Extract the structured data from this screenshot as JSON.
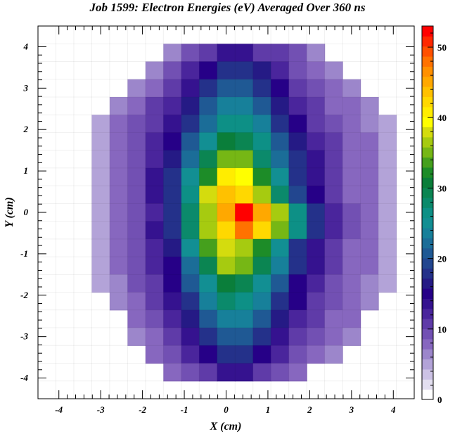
{
  "chart_data": {
    "type": "heatmap",
    "title": "Job 1599: Electron Energies (eV) Averaged Over 360 ns",
    "xlabel": "X (cm)",
    "ylabel": "Y (cm)",
    "xlim": [
      -4.5,
      4.5
    ],
    "ylim": [
      -4.5,
      4.5
    ],
    "x_ticks": [
      -4,
      -3,
      -2,
      -1,
      0,
      1,
      2,
      3,
      4
    ],
    "y_ticks": [
      -4,
      -3,
      -2,
      -1,
      0,
      1,
      2,
      3,
      4
    ],
    "x_tick_labels": [
      "-4",
      "-3",
      "-2",
      "-1",
      "0",
      "1",
      "2",
      "3",
      "4"
    ],
    "y_tick_labels": [
      "-4",
      "-3",
      "-2",
      "-1",
      "0",
      "1",
      "2",
      "3",
      "4"
    ],
    "bins": {
      "x_edges": [
        -4.5,
        4.5
      ],
      "y_edges": [
        -4.5,
        4.5
      ],
      "nx": 21,
      "ny": 21
    },
    "grid": true,
    "colorbar": {
      "range": [
        0,
        53
      ],
      "ticks": [
        0,
        10,
        20,
        30,
        40,
        50
      ],
      "tick_labels": [
        "0",
        "10",
        "20",
        "30",
        "40",
        "50"
      ],
      "location": "right"
    },
    "z_values_by_row_top_to_bottom": [
      [
        0,
        0,
        0,
        0,
        0,
        0,
        0,
        0,
        0,
        0,
        0,
        0,
        0,
        0,
        0,
        0,
        0,
        0,
        0,
        0,
        0
      ],
      [
        0,
        0,
        0,
        0,
        0,
        0,
        0,
        6,
        9,
        10,
        13,
        13,
        11,
        10,
        9,
        6,
        0,
        0,
        0,
        0,
        0
      ],
      [
        0,
        0,
        0,
        0,
        0,
        0,
        6,
        9,
        12,
        15,
        18,
        18,
        16,
        12,
        9,
        8,
        6,
        0,
        0,
        0,
        0
      ],
      [
        0,
        0,
        0,
        0,
        0,
        6,
        8,
        10,
        13,
        17,
        21,
        21,
        18,
        14,
        11,
        9,
        7,
        6,
        0,
        0,
        0
      ],
      [
        0,
        0,
        0,
        0,
        6,
        8,
        10,
        12,
        16,
        21,
        24,
        24,
        21,
        16,
        12,
        10,
        8,
        7,
        6,
        0,
        0
      ],
      [
        0,
        0,
        0,
        5,
        7,
        9,
        11,
        13,
        18,
        22,
        26,
        27,
        23,
        18,
        14,
        11,
        9,
        8,
        6,
        5,
        0
      ],
      [
        0,
        0,
        0,
        5,
        7,
        9,
        12,
        15,
        20,
        25,
        31,
        30,
        26,
        20,
        16,
        12,
        10,
        8,
        7,
        5,
        0
      ],
      [
        0,
        0,
        0,
        5,
        7,
        9,
        12,
        16,
        22,
        29,
        36,
        35,
        28,
        22,
        17,
        13,
        10,
        8,
        7,
        5,
        0
      ],
      [
        0,
        0,
        0,
        5,
        7,
        9,
        13,
        17,
        25,
        33,
        41,
        40,
        33,
        25,
        18,
        13,
        10,
        8,
        7,
        5,
        0
      ],
      [
        0,
        0,
        0,
        4,
        7,
        9,
        13,
        18,
        27,
        38,
        44,
        43,
        37,
        28,
        19,
        14,
        10,
        8,
        7,
        4,
        0
      ],
      [
        0,
        0,
        0,
        5,
        7,
        9,
        12,
        18,
        28,
        37,
        46,
        53,
        45,
        37,
        26,
        18,
        12,
        9,
        7,
        5,
        0
      ],
      [
        0,
        0,
        0,
        4,
        7,
        9,
        13,
        17,
        28,
        37,
        42,
        48,
        42,
        35,
        26,
        17,
        12,
        9,
        7,
        4,
        0
      ],
      [
        0,
        0,
        0,
        5,
        7,
        9,
        12,
        16,
        25,
        34,
        38,
        37,
        33,
        25,
        18,
        13,
        10,
        8,
        7,
        5,
        0
      ],
      [
        0,
        0,
        0,
        5,
        7,
        9,
        12,
        15,
        22,
        30,
        37,
        36,
        29,
        23,
        17,
        13,
        10,
        8,
        7,
        5,
        0
      ],
      [
        0,
        0,
        0,
        4,
        6,
        9,
        11,
        15,
        20,
        25,
        31,
        30,
        25,
        20,
        15,
        12,
        9,
        8,
        6,
        4,
        0
      ],
      [
        0,
        0,
        0,
        0,
        6,
        8,
        10,
        13,
        18,
        23,
        28,
        27,
        23,
        18,
        14,
        11,
        9,
        7,
        6,
        0,
        0
      ],
      [
        0,
        0,
        0,
        0,
        0,
        7,
        9,
        12,
        16,
        20,
        23,
        23,
        20,
        16,
        12,
        10,
        8,
        7,
        0,
        0,
        0
      ],
      [
        0,
        0,
        0,
        0,
        0,
        6,
        8,
        10,
        13,
        17,
        20,
        20,
        17,
        13,
        11,
        9,
        7,
        6,
        0,
        0,
        0
      ],
      [
        0,
        0,
        0,
        0,
        0,
        0,
        7,
        9,
        12,
        15,
        17,
        17,
        15,
        12,
        9,
        8,
        6,
        0,
        0,
        0,
        0
      ],
      [
        0,
        0,
        0,
        0,
        0,
        0,
        0,
        7,
        9,
        11,
        13,
        13,
        11,
        9,
        7,
        0,
        0,
        0,
        0,
        0,
        0
      ],
      [
        0,
        0,
        0,
        0,
        0,
        0,
        0,
        0,
        0,
        0,
        0,
        0,
        0,
        0,
        0,
        0,
        0,
        0,
        0,
        0,
        0
      ]
    ],
    "palette": [
      "#ffffff",
      "#e3dff0",
      "#ccc2e5",
      "#b3a3d8",
      "#9c86cb",
      "#8767bf",
      "#7250b3",
      "#5f3ba8",
      "#4a259c",
      "#35128f",
      "#260087",
      "#251a85",
      "#24318a",
      "#22468f",
      "#1f5994",
      "#1b6d98",
      "#17809a",
      "#128f93",
      "#0d9086",
      "#0b8a6b",
      "#0b8552",
      "#0a7e3a",
      "#1d8c28",
      "#45a01d",
      "#76b715",
      "#a6cb10",
      "#d4dc0e",
      "#ffff00",
      "#ffed00",
      "#ffd800",
      "#ffc100",
      "#ffa800",
      "#ff9000",
      "#ff7200",
      "#ff5000",
      "#ff2800",
      "#ff0000"
    ]
  }
}
